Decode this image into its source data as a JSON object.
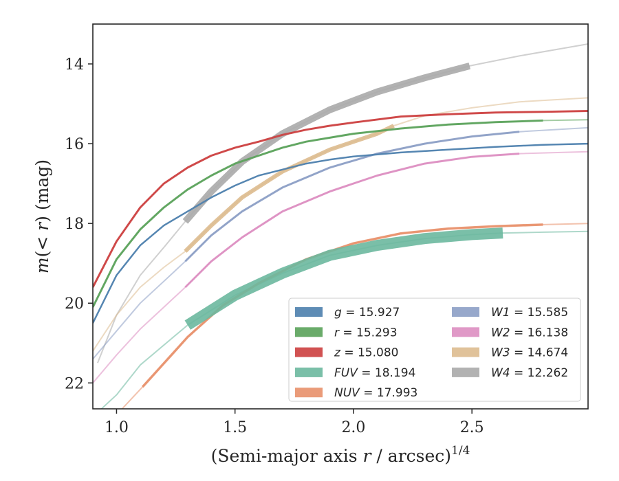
{
  "chart_data": {
    "type": "line",
    "xlabel": "(Semi-major axis r / arcsec)^1/4",
    "ylabel": "m(< r) (mag)",
    "xlim": [
      0.9,
      2.99
    ],
    "ylim": [
      22.65,
      13.0
    ],
    "y_inverted": true,
    "x_ticks": [
      1.0,
      1.5,
      2.0,
      2.5
    ],
    "x_tick_labels": [
      "1.0",
      "1.5",
      "2.0",
      "2.5"
    ],
    "y_ticks": [
      14,
      16,
      18,
      20,
      22
    ],
    "y_tick_labels": [
      "14",
      "16",
      "18",
      "20",
      "22"
    ],
    "grid": false,
    "legend_position": "lower-right",
    "series": [
      {
        "name": "g = 15.927",
        "band": "g",
        "total_mag": "15.927",
        "color": "#4c7fad",
        "x": [
          0.9,
          1.0,
          1.1,
          1.2,
          1.3,
          1.4,
          1.5,
          1.6,
          1.7,
          1.8,
          1.9,
          2.0,
          2.2,
          2.4,
          2.6,
          2.8,
          2.99
        ],
        "y": [
          20.5,
          19.3,
          18.55,
          18.05,
          17.7,
          17.35,
          17.05,
          16.8,
          16.65,
          16.5,
          16.4,
          16.32,
          16.22,
          16.15,
          16.08,
          16.03,
          16.0
        ]
      },
      {
        "name": "r = 15.293",
        "band": "r",
        "total_mag": "15.293",
        "color": "#5aa25a",
        "x": [
          0.9,
          1.0,
          1.1,
          1.2,
          1.3,
          1.4,
          1.5,
          1.6,
          1.7,
          1.8,
          1.9,
          2.0,
          2.2,
          2.4,
          2.6,
          2.8,
          2.99
        ],
        "y": [
          20.1,
          18.9,
          18.15,
          17.6,
          17.15,
          16.8,
          16.5,
          16.3,
          16.1,
          15.95,
          15.85,
          15.75,
          15.62,
          15.52,
          15.46,
          15.42,
          15.4
        ]
      },
      {
        "name": "z = 15.080",
        "band": "z",
        "total_mag": "15.080",
        "color": "#cc3f3f",
        "x": [
          0.9,
          1.0,
          1.1,
          1.2,
          1.3,
          1.4,
          1.5,
          1.6,
          1.7,
          1.8,
          1.9,
          2.0,
          2.2,
          2.4,
          2.6,
          2.8,
          2.99
        ],
        "y": [
          19.6,
          18.45,
          17.6,
          17.0,
          16.6,
          16.3,
          16.1,
          15.95,
          15.78,
          15.65,
          15.55,
          15.47,
          15.32,
          15.26,
          15.22,
          15.2,
          15.18
        ]
      },
      {
        "name": "FUV = 18.194",
        "band": "FUV",
        "total_mag": "18.194",
        "color": "#6bb89f",
        "x": [
          0.9,
          1.0,
          1.1,
          1.3,
          1.5,
          1.7,
          1.9,
          2.1,
          2.3,
          2.5,
          2.63,
          2.8,
          2.99
        ],
        "y": [
          22.85,
          22.3,
          21.55,
          20.55,
          19.8,
          19.25,
          18.8,
          18.55,
          18.38,
          18.28,
          18.24,
          18.22,
          18.2
        ]
      },
      {
        "name": "NUV = 17.993",
        "band": "NUV",
        "total_mag": "17.993",
        "color": "#e8906a",
        "x": [
          0.9,
          1.0,
          1.11,
          1.3,
          1.45,
          1.6,
          1.8,
          2.0,
          2.2,
          2.4,
          2.6,
          2.8,
          2.99
        ],
        "y": [
          23.5,
          22.8,
          22.1,
          20.85,
          20.05,
          19.5,
          18.9,
          18.5,
          18.25,
          18.13,
          18.07,
          18.03,
          18.0
        ]
      },
      {
        "name": "W1 = 15.585",
        "band": "W1",
        "total_mag": "15.585",
        "color": "#8c9fc5",
        "x": [
          0.9,
          1.0,
          1.1,
          1.2,
          1.29,
          1.4,
          1.53,
          1.7,
          1.9,
          2.1,
          2.3,
          2.5,
          2.7,
          2.99
        ],
        "y": [
          21.4,
          20.7,
          20.0,
          19.45,
          18.95,
          18.3,
          17.7,
          17.1,
          16.6,
          16.25,
          16.0,
          15.82,
          15.7,
          15.6
        ]
      },
      {
        "name": "W2 = 16.138",
        "band": "W2",
        "total_mag": "16.138",
        "color": "#dd8ec1",
        "x": [
          0.9,
          1.0,
          1.1,
          1.2,
          1.29,
          1.4,
          1.53,
          1.7,
          1.9,
          2.1,
          2.3,
          2.5,
          2.7,
          2.99
        ],
        "y": [
          22.0,
          21.3,
          20.65,
          20.1,
          19.6,
          18.95,
          18.35,
          17.7,
          17.2,
          16.8,
          16.5,
          16.33,
          16.25,
          16.2
        ]
      },
      {
        "name": "W3 = 14.674",
        "band": "W3",
        "total_mag": "14.674",
        "color": "#ddbb8f",
        "x": [
          0.9,
          1.0,
          1.1,
          1.2,
          1.29,
          1.4,
          1.53,
          1.7,
          1.9,
          2.1,
          2.17,
          2.3,
          2.5,
          2.7,
          2.99
        ],
        "y": [
          21.2,
          20.3,
          19.6,
          19.1,
          18.7,
          18.05,
          17.35,
          16.7,
          16.15,
          15.75,
          15.55,
          15.3,
          15.1,
          14.95,
          14.85
        ]
      },
      {
        "name": "W4 = 12.262",
        "band": "W4",
        "total_mag": "12.262",
        "color": "#aaaaaa",
        "x": [
          0.92,
          1.0,
          1.1,
          1.2,
          1.29,
          1.4,
          1.53,
          1.7,
          1.9,
          2.1,
          2.3,
          2.49,
          2.7,
          2.99
        ],
        "y": [
          21.5,
          20.3,
          19.3,
          18.6,
          17.95,
          17.2,
          16.45,
          15.75,
          15.15,
          14.7,
          14.35,
          14.05,
          13.8,
          13.5
        ]
      }
    ]
  }
}
